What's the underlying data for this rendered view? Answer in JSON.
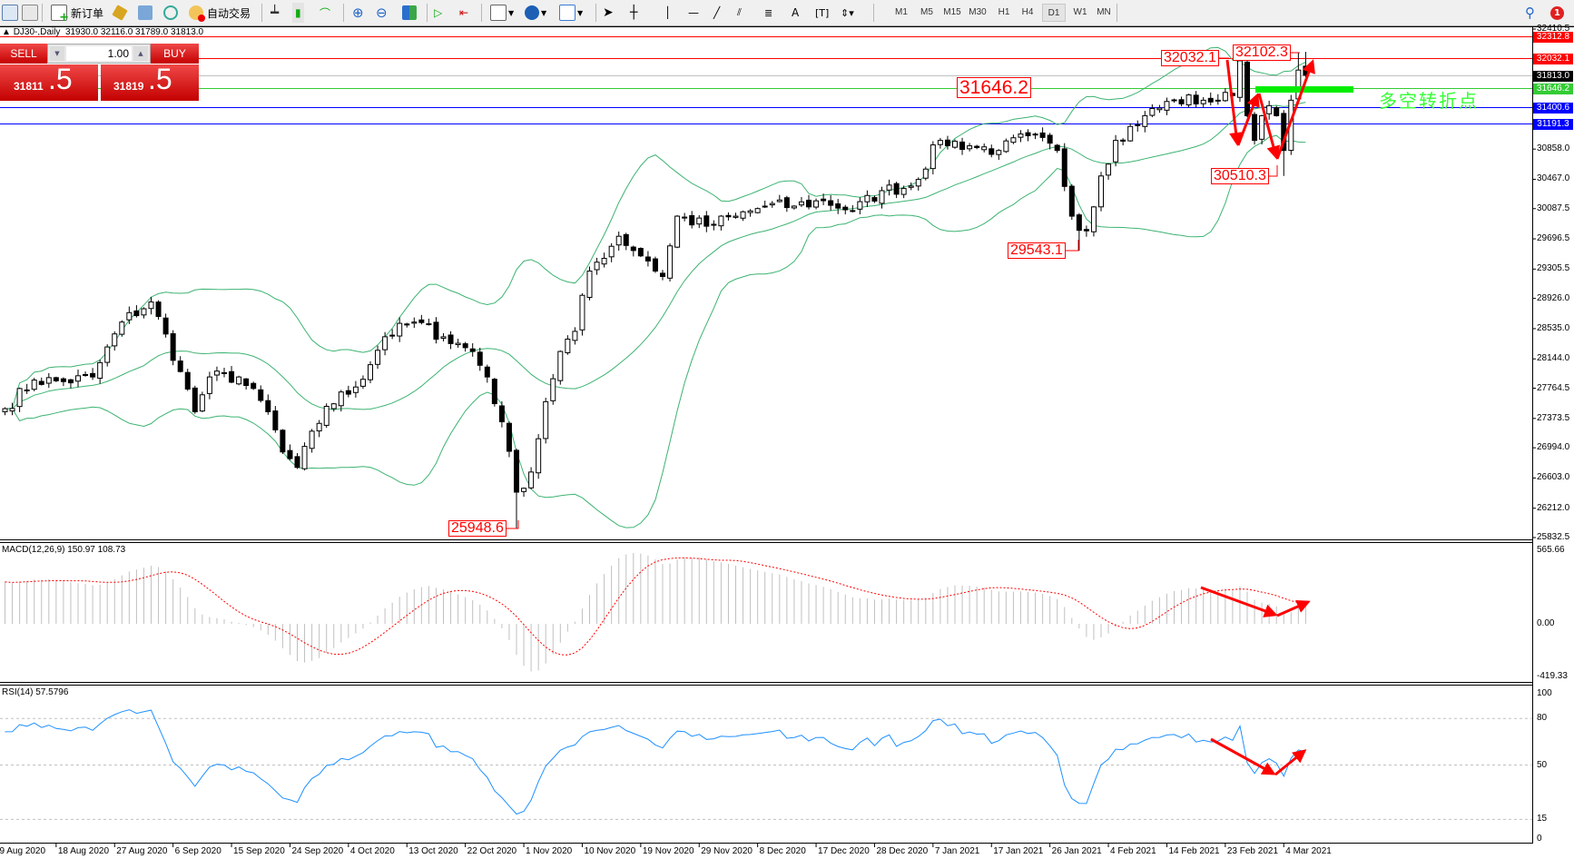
{
  "toolbar": {
    "new_order_label": "新订单",
    "auto_trading_label": "自动交易",
    "periods": [
      "M1",
      "M5",
      "M15",
      "M30",
      "H1",
      "H4",
      "D1",
      "W1",
      "MN"
    ],
    "active_period": "D1",
    "notification_count": "1"
  },
  "chart_header": {
    "symbol_period": "DJ30-,Daily",
    "ohlc": "31930.0 32116.0 31789.0 31813.0"
  },
  "one_click": {
    "sell_label": "SELL",
    "buy_label": "BUY",
    "lot": "1.00",
    "sell_price_prefix": "31811",
    "sell_price_suffix": ".5",
    "buy_price_prefix": "31819",
    "buy_price_suffix": ".5"
  },
  "colors": {
    "bullish_body": "#ffffff",
    "bearish_body": "#000000",
    "bollinger": "#3cb371",
    "macd_histogram": "#c0c0c0",
    "macd_signal": "#ff0000",
    "rsi_line": "#1e90ff",
    "annotation": "#ff0000",
    "pivot_text": "#33ff33"
  },
  "price_axis": {
    "range": [
      25832.5,
      32410.5
    ],
    "ticks": [
      "32410.5",
      "30858.0",
      "30467.0",
      "30087.5",
      "29696.5",
      "29305.5",
      "28926.0",
      "28535.0",
      "28144.0",
      "27764.5",
      "27373.5",
      "26994.0",
      "26603.0",
      "26212.0",
      "25832.5"
    ],
    "level_lines": [
      {
        "value": "32312.8",
        "color": "#ff0000",
        "label_bg": "#ff0000"
      },
      {
        "value": "32032.1",
        "color": "#ff0000",
        "label_bg": "#ff0000"
      },
      {
        "value": "31813.0",
        "color": "#c0c0c0",
        "label_bg": "#000000"
      },
      {
        "value": "31646.2",
        "color": "#33cc33",
        "label_bg": "#33cc33"
      },
      {
        "value": "31400.6",
        "color": "#0000ff",
        "label_bg": "#0000ff"
      },
      {
        "value": "31191.3",
        "color": "#0000ff",
        "label_bg": "#0000ff"
      }
    ]
  },
  "annotations": {
    "high_1": "32032.1",
    "high_2": "32102.3",
    "pivot_level": "31646.2",
    "low_1": "30510.3",
    "low_2": "29543.1",
    "low_3": "25948.6",
    "pivot_text": "多空转折点"
  },
  "macd": {
    "label": "MACD(12,26,9) 150.97 108.73",
    "axis": [
      "565.66",
      "0.00",
      "-419.33"
    ],
    "range": [
      -419.33,
      565.66
    ]
  },
  "rsi": {
    "label": "RSI(14) 57.5796",
    "axis": [
      "100",
      "80",
      "50",
      "15",
      "0"
    ],
    "levels": [
      80,
      50,
      15
    ]
  },
  "date_axis": [
    "9 Aug 2020",
    "18 Aug 2020",
    "27 Aug 2020",
    "6 Sep 2020",
    "15 Sep 2020",
    "24 Sep 2020",
    "4 Oct 2020",
    "13 Oct 2020",
    "22 Oct 2020",
    "1 Nov 2020",
    "10 Nov 2020",
    "19 Nov 2020",
    "29 Nov 2020",
    "8 Dec 2020",
    "17 Dec 2020",
    "28 Dec 2020",
    "7 Jan 2021",
    "17 Jan 2021",
    "26 Jan 2021",
    "4 Feb 2021",
    "14 Feb 2021",
    "23 Feb 2021",
    "4 Mar 2021"
  ],
  "chart_data": {
    "type": "candlestick",
    "symbol": "DJ30-",
    "timeframe": "Daily",
    "last_bar": {
      "open": 31930.0,
      "high": 32116.0,
      "low": 31789.0,
      "close": 31813.0
    },
    "indicators": [
      "Bollinger Bands(20,2)",
      "MACD(12,26,9)",
      "RSI(14)"
    ],
    "approx_closes": [
      [
        "2020-08-09",
        27500
      ],
      [
        "2020-08-13",
        27870
      ],
      [
        "2020-08-18",
        27850
      ],
      [
        "2020-08-23",
        27910
      ],
      [
        "2020-08-27",
        28620
      ],
      [
        "2020-09-01",
        28880
      ],
      [
        "2020-09-06",
        27980
      ],
      [
        "2020-09-08",
        27460
      ],
      [
        "2020-09-10",
        27910
      ],
      [
        "2020-09-15",
        27910
      ],
      [
        "2020-09-20",
        27460
      ],
      [
        "2020-09-22",
        26940
      ],
      [
        "2020-09-24",
        26740
      ],
      [
        "2020-09-29",
        27530
      ],
      [
        "2020-10-04",
        27780
      ],
      [
        "2020-10-08",
        28430
      ],
      [
        "2020-10-13",
        28620
      ],
      [
        "2020-10-18",
        28430
      ],
      [
        "2020-10-22",
        28240
      ],
      [
        "2020-10-25",
        27910
      ],
      [
        "2020-10-27",
        27330
      ],
      [
        "2020-10-29",
        26420
      ],
      [
        "2020-11-01",
        26680
      ],
      [
        "2020-11-03",
        27590
      ],
      [
        "2020-11-05",
        28240
      ],
      [
        "2020-11-08",
        28500
      ],
      [
        "2020-11-10",
        29280
      ],
      [
        "2020-11-15",
        29730
      ],
      [
        "2020-11-19",
        29410
      ],
      [
        "2020-11-22",
        29210
      ],
      [
        "2020-11-24",
        29990
      ],
      [
        "2020-11-29",
        29860
      ],
      [
        "2020-12-03",
        29990
      ],
      [
        "2020-12-08",
        30120
      ],
      [
        "2020-12-13",
        30120
      ],
      [
        "2020-12-17",
        30190
      ],
      [
        "2020-12-22",
        30060
      ],
      [
        "2020-12-27",
        30320
      ],
      [
        "2020-12-31",
        30380
      ],
      [
        "2021-01-05",
        30970
      ],
      [
        "2021-01-10",
        30900
      ],
      [
        "2021-01-14",
        30840
      ],
      [
        "2021-01-19",
        31030
      ],
      [
        "2021-01-24",
        30840
      ],
      [
        "2021-01-26",
        29990
      ],
      [
        "2021-01-28",
        29800
      ],
      [
        "2021-01-31",
        30510
      ],
      [
        "2021-02-02",
        30970
      ],
      [
        "2021-02-07",
        31290
      ],
      [
        "2021-02-11",
        31490
      ],
      [
        "2021-02-16",
        31490
      ],
      [
        "2021-02-18",
        31490
      ],
      [
        "2021-02-21",
        31550
      ],
      [
        "2021-02-22",
        32000
      ],
      [
        "2021-02-23",
        31290
      ],
      [
        "2021-02-24",
        30970
      ],
      [
        "2021-02-25",
        31290
      ],
      [
        "2021-02-26",
        31420
      ],
      [
        "2021-02-28",
        31290
      ],
      [
        "2021-03-01",
        30840
      ],
      [
        "2021-03-02",
        31490
      ],
      [
        "2021-03-03",
        31880
      ],
      [
        "2021-03-04",
        31813
      ]
    ],
    "labeled_extremes": [
      {
        "date": "2020-10-29",
        "type": "low",
        "value": 25948.6
      },
      {
        "date": "2021-01-27",
        "type": "low",
        "value": 29543.1
      },
      {
        "date": "2021-02-22",
        "type": "high",
        "value": 32032.1
      },
      {
        "date": "2021-03-01",
        "type": "low",
        "value": 30510.3
      },
      {
        "date": "2021-03-03",
        "type": "high",
        "value": 32102.3
      }
    ]
  }
}
